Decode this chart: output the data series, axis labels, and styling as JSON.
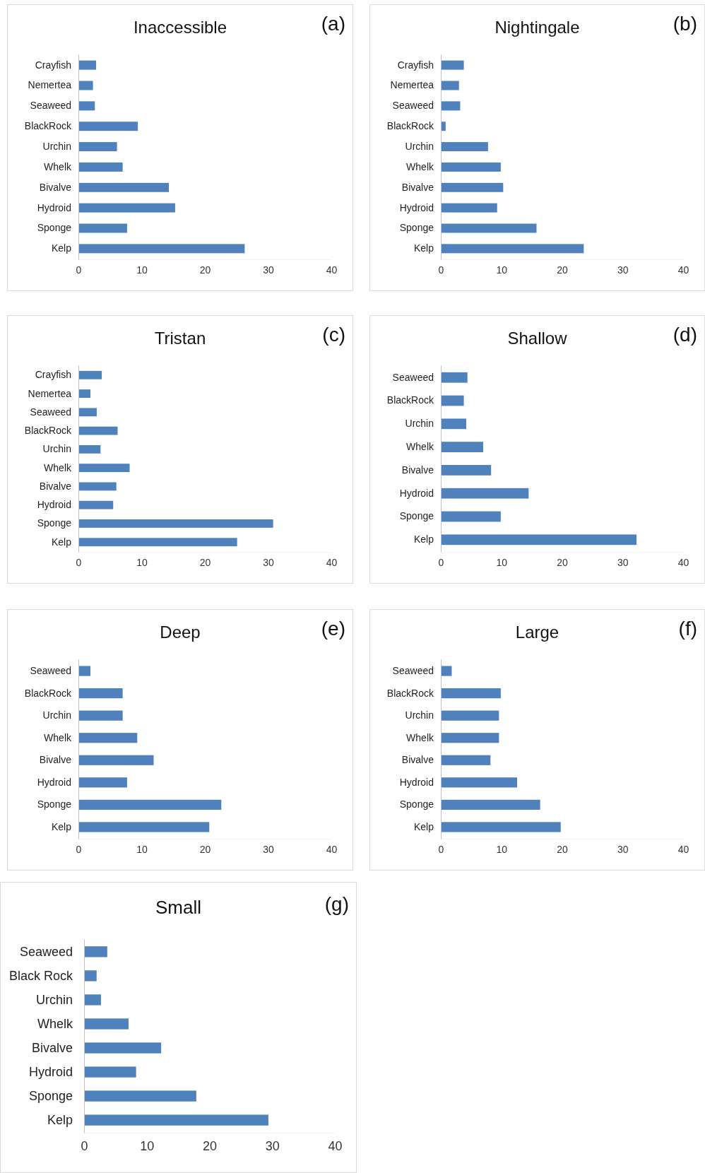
{
  "chart_data": [
    {
      "type": "bar",
      "orientation": "horizontal",
      "title": "Inaccessible",
      "annotations": [
        "(a)"
      ],
      "categories": [
        "Crayfish",
        "Nemertea",
        "Seaweed",
        "BlackRock",
        "Urchin",
        "Whelk",
        "Bivalve",
        "Hydroid",
        "Sponge",
        "Kelp"
      ],
      "values": [
        2.8,
        2.3,
        2.6,
        9.4,
        6.1,
        7.0,
        14.3,
        15.3,
        7.7,
        26.3
      ],
      "color": "#4f81bd",
      "xlim": [
        0,
        40
      ],
      "xticks": [
        0,
        10,
        20,
        30,
        40
      ],
      "grid": false
    },
    {
      "type": "bar",
      "orientation": "horizontal",
      "title": "Nightingale",
      "annotations": [
        "(b)"
      ],
      "categories": [
        "Crayfish",
        "Nemertea",
        "Seaweed",
        "BlackRock",
        "Urchin",
        "Whelk",
        "Bivalve",
        "Hydroid",
        "Sponge",
        "Kelp"
      ],
      "values": [
        3.8,
        3.0,
        3.2,
        0.8,
        7.8,
        9.9,
        10.3,
        9.3,
        15.8,
        23.6
      ],
      "color": "#4f81bd",
      "xlim": [
        0,
        40
      ],
      "xticks": [
        0,
        10,
        20,
        30,
        40
      ],
      "grid": false
    },
    {
      "type": "bar",
      "orientation": "horizontal",
      "title": "Tristan",
      "annotations": [
        "(c)"
      ],
      "categories": [
        "Crayfish",
        "Nemertea",
        "Seaweed",
        "BlackRock",
        "Urchin",
        "Whelk",
        "Bivalve",
        "Hydroid",
        "Sponge",
        "Kelp"
      ],
      "values": [
        3.7,
        1.9,
        2.9,
        6.2,
        3.5,
        8.1,
        6.0,
        5.5,
        30.8,
        25.1
      ],
      "color": "#4f81bd",
      "xlim": [
        0,
        40
      ],
      "xticks": [
        0,
        10,
        20,
        30,
        40
      ],
      "grid": false
    },
    {
      "type": "bar",
      "orientation": "horizontal",
      "title": "Shallow",
      "annotations": [
        "(d)"
      ],
      "categories": [
        "Seaweed",
        "BlackRock",
        "Urchin",
        "Whelk",
        "Bivalve",
        "Hydroid",
        "Sponge",
        "Kelp"
      ],
      "values": [
        4.4,
        3.8,
        4.2,
        7.0,
        8.3,
        14.5,
        9.9,
        32.3
      ],
      "color": "#4f81bd",
      "xlim": [
        0,
        40
      ],
      "xticks": [
        0,
        10,
        20,
        30,
        40
      ],
      "grid": false
    },
    {
      "type": "bar",
      "orientation": "horizontal",
      "title": "Deep",
      "annotations": [
        "(e)"
      ],
      "categories": [
        "Seaweed",
        "BlackRock",
        "Urchin",
        "Whelk",
        "Bivalve",
        "Hydroid",
        "Sponge",
        "Kelp"
      ],
      "values": [
        1.9,
        7.0,
        7.0,
        9.3,
        11.9,
        7.7,
        22.6,
        20.7
      ],
      "color": "#4f81bd",
      "xlim": [
        0,
        40
      ],
      "xticks": [
        0,
        10,
        20,
        30,
        40
      ],
      "grid": false
    },
    {
      "type": "bar",
      "orientation": "horizontal",
      "title": "Large",
      "annotations": [
        "(f)"
      ],
      "categories": [
        "Seaweed",
        "BlackRock",
        "Urchin",
        "Whelk",
        "Bivalve",
        "Hydroid",
        "Sponge",
        "Kelp"
      ],
      "values": [
        1.8,
        9.9,
        9.6,
        9.6,
        8.2,
        12.6,
        16.4,
        19.8
      ],
      "color": "#4f81bd",
      "xlim": [
        0,
        40
      ],
      "xticks": [
        0,
        10,
        20,
        30,
        40
      ],
      "grid": false
    },
    {
      "type": "bar",
      "orientation": "horizontal",
      "title": "Small",
      "annotations": [
        "(g)"
      ],
      "categories": [
        "Seaweed",
        "Black Rock",
        "Urchin",
        "Whelk",
        "Bivalve",
        "Hydroid",
        "Sponge",
        "Kelp"
      ],
      "values": [
        3.7,
        2.0,
        2.7,
        7.1,
        12.3,
        8.3,
        17.9,
        29.4
      ],
      "color": "#4f81bd",
      "xlim": [
        0,
        40
      ],
      "xticks": [
        0,
        10,
        20,
        30,
        40
      ],
      "grid": false
    }
  ]
}
